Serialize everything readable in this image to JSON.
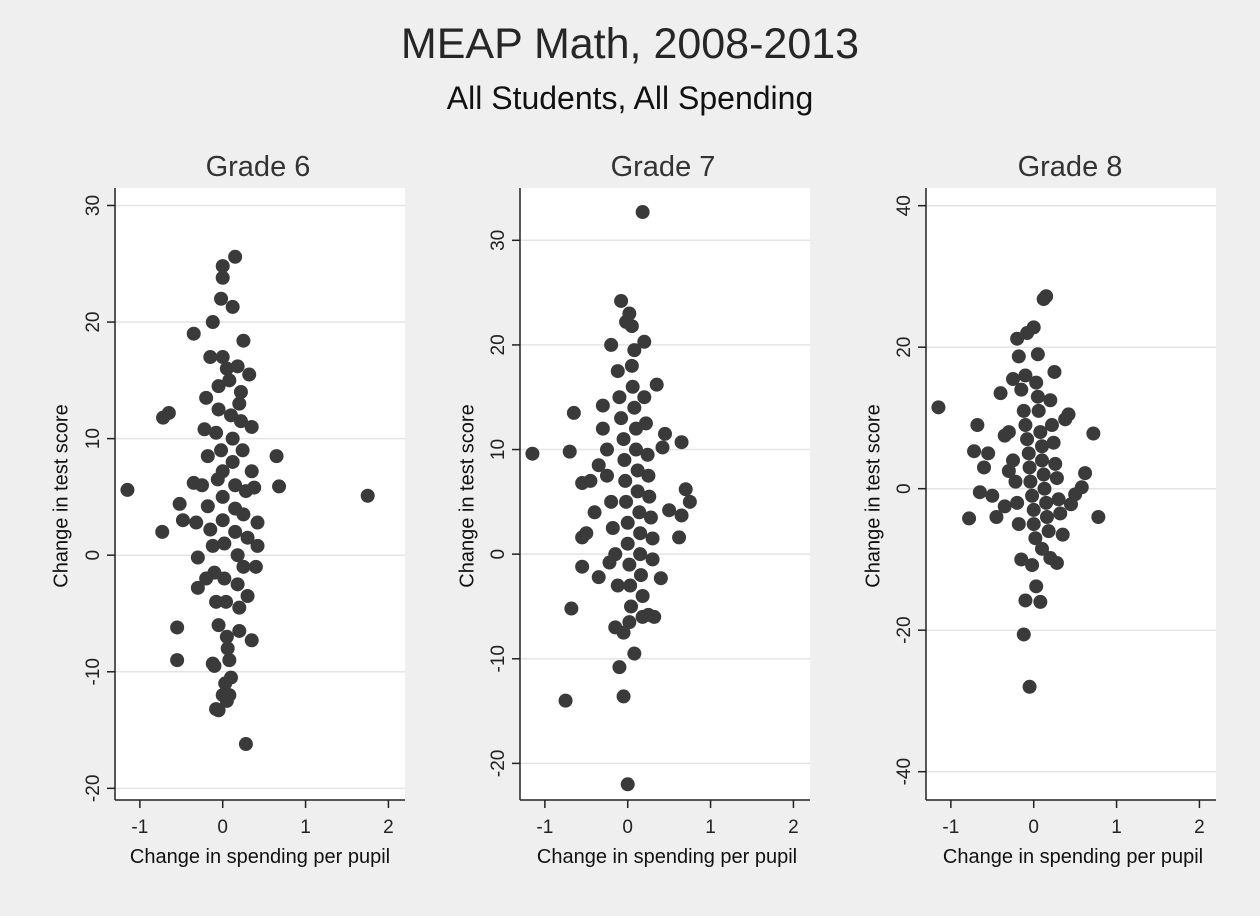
{
  "title": "MEAP Math, 2008-2013",
  "subtitle": "All Students, All Spending",
  "chart_data": [
    {
      "type": "scatter",
      "title": "Grade 6",
      "xlabel": "Change in spending per pupil",
      "ylabel": "Change in test score",
      "xlim": [
        -1.3,
        2.2
      ],
      "ylim": [
        -21,
        31.5
      ],
      "xticks": [
        -1,
        0,
        1,
        2
      ],
      "yticks": [
        30,
        20,
        10,
        0,
        -10,
        -20
      ],
      "grid": true,
      "points": [
        [
          -1.15,
          5.6
        ],
        [
          1.75,
          5.1
        ],
        [
          -0.72,
          11.8
        ],
        [
          -0.65,
          12.2
        ],
        [
          -0.73,
          2.0
        ],
        [
          -0.55,
          -6.2
        ],
        [
          -0.55,
          -9.0
        ],
        [
          -0.52,
          4.4
        ],
        [
          -0.48,
          3.0
        ],
        [
          -0.35,
          19.0
        ],
        [
          -0.35,
          6.2
        ],
        [
          -0.32,
          2.8
        ],
        [
          -0.3,
          -0.2
        ],
        [
          -0.3,
          -2.8
        ],
        [
          -0.25,
          6.0
        ],
        [
          -0.22,
          10.8
        ],
        [
          -0.2,
          13.5
        ],
        [
          -0.18,
          8.5
        ],
        [
          -0.15,
          17.0
        ],
        [
          -0.12,
          20.0
        ],
        [
          -0.12,
          -9.3
        ],
        [
          -0.08,
          -13.2
        ],
        [
          -0.05,
          -13.3
        ],
        [
          -0.02,
          22.0
        ],
        [
          0.0,
          24.8
        ],
        [
          0.0,
          23.8
        ],
        [
          0.0,
          17.0
        ],
        [
          0.03,
          -11.0
        ],
        [
          0.05,
          -12.5
        ],
        [
          0.08,
          -12.0
        ],
        [
          0.12,
          21.3
        ],
        [
          0.15,
          25.6
        ],
        [
          0.18,
          16.2
        ],
        [
          0.22,
          14.0
        ],
        [
          0.25,
          18.4
        ],
        [
          0.28,
          -16.2
        ],
        [
          0.32,
          15.5
        ],
        [
          0.35,
          11.0
        ],
        [
          0.35,
          7.2
        ],
        [
          0.38,
          5.8
        ],
        [
          0.35,
          -7.3
        ],
        [
          0.42,
          2.8
        ],
        [
          0.42,
          0.8
        ],
        [
          0.4,
          -1.0
        ],
        [
          0.65,
          8.5
        ],
        [
          0.68,
          5.9
        ],
        [
          -0.18,
          4.2
        ],
        [
          -0.15,
          2.2
        ],
        [
          -0.12,
          0.8
        ],
        [
          -0.1,
          -1.5
        ],
        [
          -0.08,
          -4.0
        ],
        [
          -0.05,
          -6.0
        ],
        [
          -0.05,
          14.5
        ],
        [
          -0.05,
          12.5
        ],
        [
          -0.02,
          9.0
        ],
        [
          0.0,
          7.2
        ],
        [
          0.0,
          5.0
        ],
        [
          0.0,
          3.0
        ],
        [
          0.02,
          1.0
        ],
        [
          0.02,
          -2.0
        ],
        [
          0.04,
          -4.0
        ],
        [
          0.05,
          -7.0
        ],
        [
          0.08,
          -9.0
        ],
        [
          0.08,
          15.0
        ],
        [
          0.1,
          12.0
        ],
        [
          0.12,
          10.0
        ],
        [
          0.12,
          8.0
        ],
        [
          0.15,
          6.0
        ],
        [
          0.15,
          4.0
        ],
        [
          0.15,
          2.0
        ],
        [
          0.18,
          0.0
        ],
        [
          0.18,
          -2.5
        ],
        [
          0.2,
          -4.5
        ],
        [
          0.2,
          -6.5
        ],
        [
          0.22,
          11.5
        ],
        [
          0.24,
          9.0
        ],
        [
          0.25,
          3.5
        ],
        [
          0.25,
          -1.0
        ],
        [
          -0.08,
          10.5
        ],
        [
          -0.06,
          6.5
        ],
        [
          0.06,
          -8.0
        ],
        [
          0.28,
          5.5
        ],
        [
          0.3,
          1.5
        ],
        [
          0.3,
          -3.5
        ],
        [
          -0.1,
          -9.5
        ],
        [
          0.1,
          -10.5
        ],
        [
          0.0,
          -12.0
        ],
        [
          -0.2,
          -2.0
        ],
        [
          0.05,
          16.0
        ],
        [
          0.2,
          13.0
        ]
      ]
    },
    {
      "type": "scatter",
      "title": "Grade 7",
      "xlabel": "Change in spending per pupil",
      "ylabel": "Change in test score",
      "xlim": [
        -1.3,
        2.2
      ],
      "ylim": [
        -23.5,
        35
      ],
      "xticks": [
        -1,
        0,
        1,
        2
      ],
      "yticks": [
        30,
        20,
        10,
        0,
        -10,
        -20
      ],
      "grid": true,
      "points": [
        [
          -1.15,
          9.6
        ],
        [
          -0.75,
          -14.0
        ],
        [
          -0.68,
          -5.2
        ],
        [
          -0.65,
          13.5
        ],
        [
          -0.7,
          9.8
        ],
        [
          -0.55,
          6.8
        ],
        [
          -0.55,
          -1.2
        ],
        [
          -0.55,
          1.6
        ],
        [
          -0.5,
          2.0
        ],
        [
          -0.45,
          7.0
        ],
        [
          -0.4,
          4.0
        ],
        [
          -0.35,
          -2.2
        ],
        [
          -0.3,
          14.2
        ],
        [
          -0.25,
          10.0
        ],
        [
          -0.2,
          20.0
        ],
        [
          -0.15,
          -7.0
        ],
        [
          -0.1,
          -10.8
        ],
        [
          -0.08,
          24.2
        ],
        [
          -0.05,
          -13.6
        ],
        [
          -0.02,
          22.2
        ],
        [
          0.0,
          -22.0
        ],
        [
          0.02,
          23.0
        ],
        [
          0.05,
          21.8
        ],
        [
          0.08,
          -9.5
        ],
        [
          0.18,
          32.7
        ],
        [
          0.2,
          20.3
        ],
        [
          0.25,
          -5.8
        ],
        [
          0.32,
          -6.0
        ],
        [
          0.35,
          16.2
        ],
        [
          0.4,
          -2.3
        ],
        [
          0.42,
          10.2
        ],
        [
          0.45,
          11.5
        ],
        [
          0.5,
          4.2
        ],
        [
          0.62,
          1.6
        ],
        [
          0.65,
          3.7
        ],
        [
          0.65,
          10.7
        ],
        [
          0.7,
          6.2
        ],
        [
          0.75,
          5.0
        ],
        [
          -0.3,
          12.0
        ],
        [
          -0.25,
          7.5
        ],
        [
          -0.2,
          5.0
        ],
        [
          -0.18,
          2.5
        ],
        [
          -0.15,
          0.0
        ],
        [
          -0.12,
          -3.0
        ],
        [
          -0.1,
          15.0
        ],
        [
          -0.08,
          13.0
        ],
        [
          -0.05,
          11.0
        ],
        [
          -0.04,
          9.0
        ],
        [
          -0.03,
          7.0
        ],
        [
          -0.02,
          5.0
        ],
        [
          0.0,
          3.0
        ],
        [
          0.0,
          1.0
        ],
        [
          0.02,
          -1.0
        ],
        [
          0.03,
          -3.0
        ],
        [
          0.04,
          -5.0
        ],
        [
          0.05,
          18.0
        ],
        [
          0.06,
          16.0
        ],
        [
          0.08,
          14.0
        ],
        [
          0.1,
          12.0
        ],
        [
          0.1,
          10.0
        ],
        [
          0.12,
          8.0
        ],
        [
          0.12,
          6.0
        ],
        [
          0.14,
          4.0
        ],
        [
          0.15,
          2.0
        ],
        [
          0.15,
          0.0
        ],
        [
          0.16,
          -2.0
        ],
        [
          0.18,
          -4.0
        ],
        [
          0.2,
          15.0
        ],
        [
          0.22,
          12.5
        ],
        [
          0.24,
          9.5
        ],
        [
          0.25,
          7.5
        ],
        [
          0.26,
          5.5
        ],
        [
          0.28,
          3.5
        ],
        [
          0.3,
          1.5
        ],
        [
          0.3,
          -0.5
        ],
        [
          -0.22,
          -0.8
        ],
        [
          -0.35,
          8.5
        ],
        [
          -0.12,
          17.5
        ],
        [
          0.08,
          19.5
        ],
        [
          0.18,
          -6.0
        ],
        [
          -0.05,
          -7.5
        ],
        [
          0.02,
          -6.5
        ]
      ]
    },
    {
      "type": "scatter",
      "title": "Grade 8",
      "xlabel": "Change in spending per pupil",
      "ylabel": "Change in test score",
      "xlim": [
        -1.3,
        2.2
      ],
      "ylim": [
        -44,
        42.5
      ],
      "xticks": [
        -1,
        0,
        1,
        2
      ],
      "yticks": [
        40,
        20,
        0,
        -20,
        -40
      ],
      "grid": true,
      "points": [
        [
          -1.15,
          11.5
        ],
        [
          -0.78,
          -4.2
        ],
        [
          -0.72,
          5.3
        ],
        [
          -0.68,
          9.0
        ],
        [
          -0.65,
          -0.5
        ],
        [
          -0.6,
          3.0
        ],
        [
          -0.55,
          5.0
        ],
        [
          -0.5,
          -1.0
        ],
        [
          -0.45,
          -4.0
        ],
        [
          -0.4,
          13.5
        ],
        [
          -0.35,
          7.5
        ],
        [
          -0.3,
          2.5
        ],
        [
          -0.25,
          15.5
        ],
        [
          -0.2,
          21.2
        ],
        [
          -0.18,
          18.7
        ],
        [
          -0.15,
          -10.0
        ],
        [
          -0.12,
          -20.6
        ],
        [
          -0.1,
          -15.8
        ],
        [
          -0.08,
          22.0
        ],
        [
          -0.05,
          -28.0
        ],
        [
          -0.02,
          -10.8
        ],
        [
          0.0,
          22.8
        ],
        [
          0.03,
          -13.8
        ],
        [
          0.08,
          -16.0
        ],
        [
          0.12,
          26.8
        ],
        [
          0.15,
          27.2
        ],
        [
          0.2,
          -9.8
        ],
        [
          0.25,
          16.5
        ],
        [
          0.28,
          -10.5
        ],
        [
          0.35,
          -6.5
        ],
        [
          0.38,
          9.8
        ],
        [
          0.42,
          10.5
        ],
        [
          0.45,
          -2.2
        ],
        [
          0.5,
          -0.8
        ],
        [
          0.58,
          0.2
        ],
        [
          0.62,
          2.2
        ],
        [
          0.72,
          7.8
        ],
        [
          0.78,
          -4.0
        ],
        [
          -0.3,
          8.0
        ],
        [
          -0.25,
          4.0
        ],
        [
          -0.22,
          1.0
        ],
        [
          -0.2,
          -2.0
        ],
        [
          -0.18,
          -5.0
        ],
        [
          -0.15,
          14.0
        ],
        [
          -0.12,
          11.0
        ],
        [
          -0.1,
          9.0
        ],
        [
          -0.08,
          7.0
        ],
        [
          -0.06,
          5.0
        ],
        [
          -0.05,
          3.0
        ],
        [
          -0.04,
          1.0
        ],
        [
          -0.02,
          -1.0
        ],
        [
          0.0,
          -3.0
        ],
        [
          0.0,
          -5.0
        ],
        [
          0.02,
          -7.0
        ],
        [
          0.03,
          15.0
        ],
        [
          0.05,
          13.0
        ],
        [
          0.06,
          11.0
        ],
        [
          0.08,
          8.0
        ],
        [
          0.1,
          6.0
        ],
        [
          0.1,
          4.0
        ],
        [
          0.12,
          2.0
        ],
        [
          0.13,
          0.0
        ],
        [
          0.15,
          -2.0
        ],
        [
          0.16,
          -4.0
        ],
        [
          0.18,
          -6.0
        ],
        [
          0.2,
          12.5
        ],
        [
          0.22,
          9.0
        ],
        [
          0.24,
          6.5
        ],
        [
          0.26,
          3.5
        ],
        [
          0.28,
          1.5
        ],
        [
          0.3,
          -1.5
        ],
        [
          0.32,
          -3.5
        ],
        [
          -0.35,
          -2.5
        ],
        [
          -0.1,
          16.0
        ],
        [
          0.05,
          19.0
        ],
        [
          0.1,
          -8.5
        ]
      ]
    }
  ]
}
